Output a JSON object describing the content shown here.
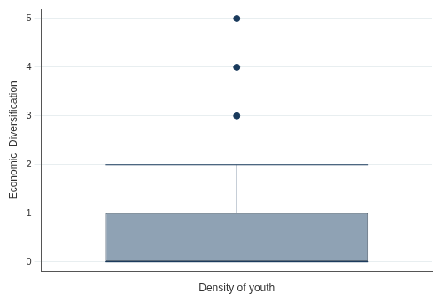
{
  "chart_data": {
    "type": "box",
    "x_label": "Density of youth",
    "y_label": "Economic_Diversification",
    "box": {
      "whisker_low": 0,
      "q1": 0,
      "median": 0,
      "q3": 1,
      "whisker_high": 2,
      "outliers": [
        3,
        4,
        5
      ]
    },
    "color": "#8fa2b4",
    "ylim": [
      -0.2,
      5.2
    ],
    "yticks": [
      0,
      1,
      2,
      3,
      4,
      5
    ],
    "grid": true,
    "tick_labels": "y"
  }
}
